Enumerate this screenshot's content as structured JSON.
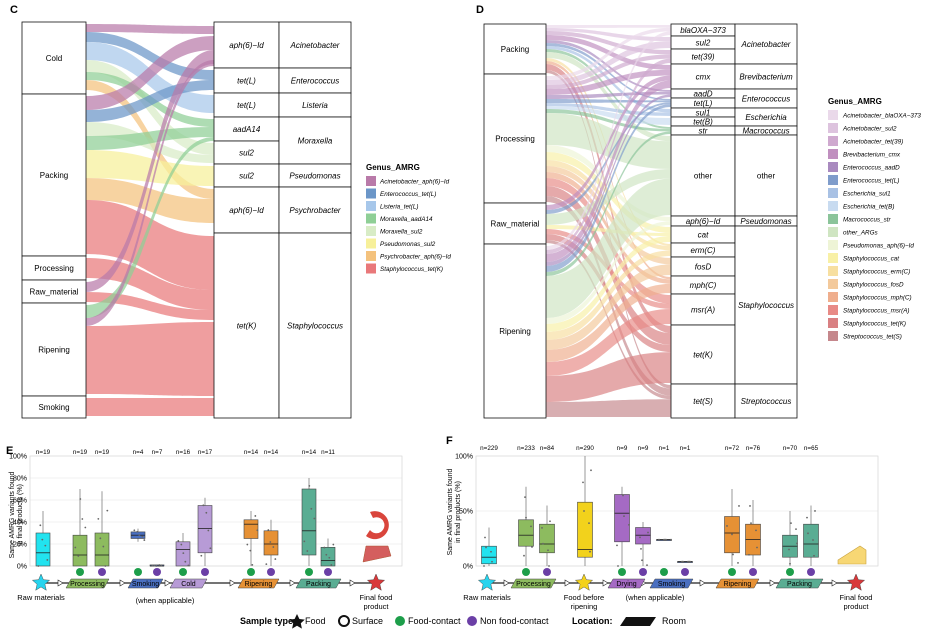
{
  "panels": {
    "C": {
      "label": "C",
      "locations": [
        "Cold",
        "Packing",
        "Processing",
        "Raw_material",
        "Ripening",
        "Smoking"
      ],
      "arg_rows": [
        {
          "arg": "aph(6)−Id",
          "genus": "Acinetobacter"
        },
        {
          "arg": "tet(L)",
          "genus": "Enterococcus"
        },
        {
          "arg": "tet(L)",
          "genus": "Listeria"
        },
        {
          "arg": "aadA14",
          "genus": "Moraxella"
        },
        {
          "arg": "sul2",
          "genus": "Moraxella"
        },
        {
          "arg": "sul2",
          "genus": "Pseudomonas"
        },
        {
          "arg": "aph(6)−Id",
          "genus": "Psychrobacter"
        },
        {
          "arg": "tet(K)",
          "genus": "Staphylococcus"
        }
      ],
      "genus_labels": [
        "Acinetobacter",
        "Enterococcus",
        "Listeria",
        "Moraxella",
        "Pseudomonas",
        "Psychrobacter",
        "Staphylococcus"
      ],
      "legend_title": "Genus_AMRG",
      "legend": [
        {
          "label": "Acinetobacter_aph(6)−Id",
          "color": "#b97aa9"
        },
        {
          "label": "Enterococcus_tet(L)",
          "color": "#6b96c8"
        },
        {
          "label": "Listeria_tet(L)",
          "color": "#a7c7ea"
        },
        {
          "label": "Moraxella_aadA14",
          "color": "#8fcf96"
        },
        {
          "label": "Moraxella_sul2",
          "color": "#d8ecc6"
        },
        {
          "label": "Pseudomonas_sul2",
          "color": "#f7f09a"
        },
        {
          "label": "Psychrobacter_aph(6)−Id",
          "color": "#f4c27d"
        },
        {
          "label": "Staphylococcus_tet(K)",
          "color": "#e9787a"
        }
      ]
    },
    "D": {
      "label": "D",
      "locations": [
        "Packing",
        "Processing",
        "Raw_material",
        "Ripening"
      ],
      "arg_rows": [
        "blaOXA−373",
        "sul2",
        "tet(39)",
        "cmx",
        "aadD",
        "tet(L)",
        "sul1",
        "tet(B)",
        "str",
        "other",
        "aph(6)−Id",
        "cat",
        "erm(C)",
        "fosD",
        "mph(C)",
        "msr(A)",
        "tet(K)",
        "tet(S)"
      ],
      "genus_labels": [
        "Acinetobacter",
        "Brevibacterium",
        "Enterococcus",
        "Escherichia",
        "Macrococcus",
        "other",
        "Pseudomonas",
        "Staphylococcus",
        "Streptococcus"
      ],
      "legend_title": "Genus_AMRG",
      "legend": [
        {
          "label": "Acinetobacter_blaOXA−373",
          "color": "#ead9ea"
        },
        {
          "label": "Acinetobacter_sul2",
          "color": "#ddc3de"
        },
        {
          "label": "Acinetobacter_tet(39)",
          "color": "#cfa9cf"
        },
        {
          "label": "Brevibacterium_cmx",
          "color": "#c08fbf"
        },
        {
          "label": "Enterococcus_aadD",
          "color": "#a98abf"
        },
        {
          "label": "Enterococcus_tet(L)",
          "color": "#7f9ccb"
        },
        {
          "label": "Escherichia_sul1",
          "color": "#a8c1e4"
        },
        {
          "label": "Escherichia_tet(B)",
          "color": "#c8dbf0"
        },
        {
          "label": "Macrococcus_str",
          "color": "#8bc49a"
        },
        {
          "label": "other_ARGs",
          "color": "#cfe5c2"
        },
        {
          "label": "Pseudomonas_aph(6)−Id",
          "color": "#eef4d6"
        },
        {
          "label": "Staphylococcus_cat",
          "color": "#f8f0a6"
        },
        {
          "label": "Staphylococcus_erm(C)",
          "color": "#f7dfa0"
        },
        {
          "label": "Staphylococcus_fosD",
          "color": "#f3c99b"
        },
        {
          "label": "Staphylococcus_mph(C)",
          "color": "#efae8d"
        },
        {
          "label": "Staphylococcus_msr(A)",
          "color": "#e88a86"
        },
        {
          "label": "Staphylococcus_tet(K)",
          "color": "#d98082"
        },
        {
          "label": "Streptococcus_tet(S)",
          "color": "#c5878c"
        }
      ]
    },
    "E": {
      "label": "E",
      "ylabel_1": "Same AMRG variants found",
      "ylabel_2": "in final products (%)",
      "ticks": [
        "100%",
        "80%",
        "60%",
        "40%",
        "20%",
        "0%"
      ]
    },
    "F": {
      "label": "F",
      "ylabel_1": "Same AMRG variants found",
      "ylabel_2": "in final products (%)",
      "ticks": [
        "100%",
        "50%",
        "0%"
      ]
    }
  },
  "chart_data": [
    {
      "type": "box",
      "panel": "E",
      "ylabel": "Same AMRG variants found in final products (%)",
      "ylim": [
        0,
        100
      ],
      "boxes": [
        {
          "n": "n=19",
          "stage": "Raw materials",
          "color": "#22e3ef",
          "q1": 0,
          "median": 12,
          "q3": 30,
          "min": 0,
          "max": 50
        },
        {
          "n": "n=19",
          "stage": "Processing",
          "color": "#8dbb5f",
          "q1": 0,
          "median": 10,
          "q3": 28,
          "min": 0,
          "max": 70
        },
        {
          "n": "n=19",
          "stage": "Processing",
          "color": "#8dbb5f",
          "q1": 0,
          "median": 10,
          "q3": 30,
          "min": 0,
          "max": 68
        },
        {
          "n": "n=4",
          "stage": "Smoking",
          "color": "#4a6fc0",
          "q1": 25,
          "median": 28,
          "q3": 31,
          "min": 22,
          "max": 34
        },
        {
          "n": "n=7",
          "stage": "Smoking",
          "color": "#4a6fc0",
          "q1": 0,
          "median": 0,
          "q3": 1,
          "min": 0,
          "max": 1
        },
        {
          "n": "n=16",
          "stage": "Cold",
          "color": "#b79bd6",
          "q1": 0,
          "median": 15,
          "q3": 22,
          "min": 0,
          "max": 30
        },
        {
          "n": "n=17",
          "stage": "Cold",
          "color": "#b79bd6",
          "q1": 12,
          "median": 34,
          "q3": 55,
          "min": 0,
          "max": 62
        },
        {
          "n": "n=14",
          "stage": "Ripening",
          "color": "#e69135",
          "q1": 25,
          "median": 38,
          "q3": 42,
          "min": 0,
          "max": 50
        },
        {
          "n": "n=14",
          "stage": "Ripening",
          "color": "#e69135",
          "q1": 10,
          "median": 20,
          "q3": 32,
          "min": 0,
          "max": 42
        },
        {
          "n": "n=14",
          "stage": "Packing",
          "color": "#5aad93",
          "q1": 10,
          "median": 32,
          "q3": 70,
          "min": 0,
          "max": 80
        },
        {
          "n": "n=11",
          "stage": "Packing",
          "color": "#5aad93",
          "q1": 0,
          "median": 5,
          "q3": 17,
          "min": 0,
          "max": 25
        }
      ],
      "flow": [
        "Raw materials",
        "Processing",
        "Smoking",
        "Cold",
        "Ripening",
        "Packing",
        "Final food product"
      ],
      "note": "(when applicable)"
    },
    {
      "type": "box",
      "panel": "F",
      "ylabel": "Same AMRG variants found in final products (%)",
      "ylim": [
        0,
        100
      ],
      "boxes": [
        {
          "n": "n=229",
          "stage": "Raw materials",
          "color": "#22e3ef",
          "q1": 2,
          "median": 8,
          "q3": 18,
          "min": 0,
          "max": 35
        },
        {
          "n": "n=233",
          "stage": "Processing",
          "color": "#8dbb5f",
          "q1": 18,
          "median": 28,
          "q3": 42,
          "min": 0,
          "max": 72
        },
        {
          "n": "n=84",
          "stage": "Processing",
          "color": "#8dbb5f",
          "q1": 12,
          "median": 20,
          "q3": 38,
          "min": 0,
          "max": 55
        },
        {
          "n": "n=290",
          "stage": "Food before ripening",
          "color": "#f2d21c",
          "q1": 8,
          "median": 15,
          "q3": 58,
          "min": 0,
          "max": 100
        },
        {
          "n": "n=9",
          "stage": "Drying",
          "color": "#a56ac4",
          "q1": 22,
          "median": 48,
          "q3": 65,
          "min": 0,
          "max": 72
        },
        {
          "n": "n=9",
          "stage": "Drying",
          "color": "#a56ac4",
          "q1": 20,
          "median": 28,
          "q3": 35,
          "min": 0,
          "max": 40
        },
        {
          "n": "n=1",
          "stage": "Smoking",
          "color": "#4a6fc0",
          "q1": 24,
          "median": 24,
          "q3": 24,
          "min": 24,
          "max": 24
        },
        {
          "n": "n=1",
          "stage": "Smoking",
          "color": "#4a6fc0",
          "q1": 4,
          "median": 4,
          "q3": 4,
          "min": 4,
          "max": 4
        },
        {
          "n": "n=72",
          "stage": "Ripening",
          "color": "#e69135",
          "q1": 12,
          "median": 30,
          "q3": 45,
          "min": 0,
          "max": 70
        },
        {
          "n": "n=76",
          "stage": "Ripening",
          "color": "#e69135",
          "q1": 10,
          "median": 24,
          "q3": 38,
          "min": 0,
          "max": 60
        },
        {
          "n": "n=70",
          "stage": "Packing",
          "color": "#5aad93",
          "q1": 8,
          "median": 18,
          "q3": 28,
          "min": 0,
          "max": 50
        },
        {
          "n": "n=65",
          "stage": "Packing",
          "color": "#5aad93",
          "q1": 8,
          "median": 20,
          "q3": 38,
          "min": 0,
          "max": 55
        }
      ],
      "flow": [
        "Raw materials",
        "Processing",
        "Food before ripening",
        "Drying",
        "Smoking",
        "Ripening",
        "Packing",
        "Final food product"
      ],
      "note": "(when applicable)"
    }
  ],
  "footer": {
    "sample_type_label": "Sample type:",
    "food": "Food",
    "surface": "Surface",
    "food_contact": "Food-contact",
    "non_food_contact": "Non food-contact",
    "location_label": "Location:",
    "room": "Room"
  },
  "flow_labels": {
    "raw_materials": "Raw materials",
    "final_1": "Final food",
    "final_2": "product",
    "food_before_1": "Food before",
    "food_before_2": "ripening",
    "when_applicable": "(when applicable)"
  },
  "colors": {
    "food_contact": "#1d9e4a",
    "non_food_contact": "#6b3fa6",
    "star_final": "#d9383a",
    "star_raw": "#27d4ee",
    "star_ripening": "#f4d21a"
  }
}
